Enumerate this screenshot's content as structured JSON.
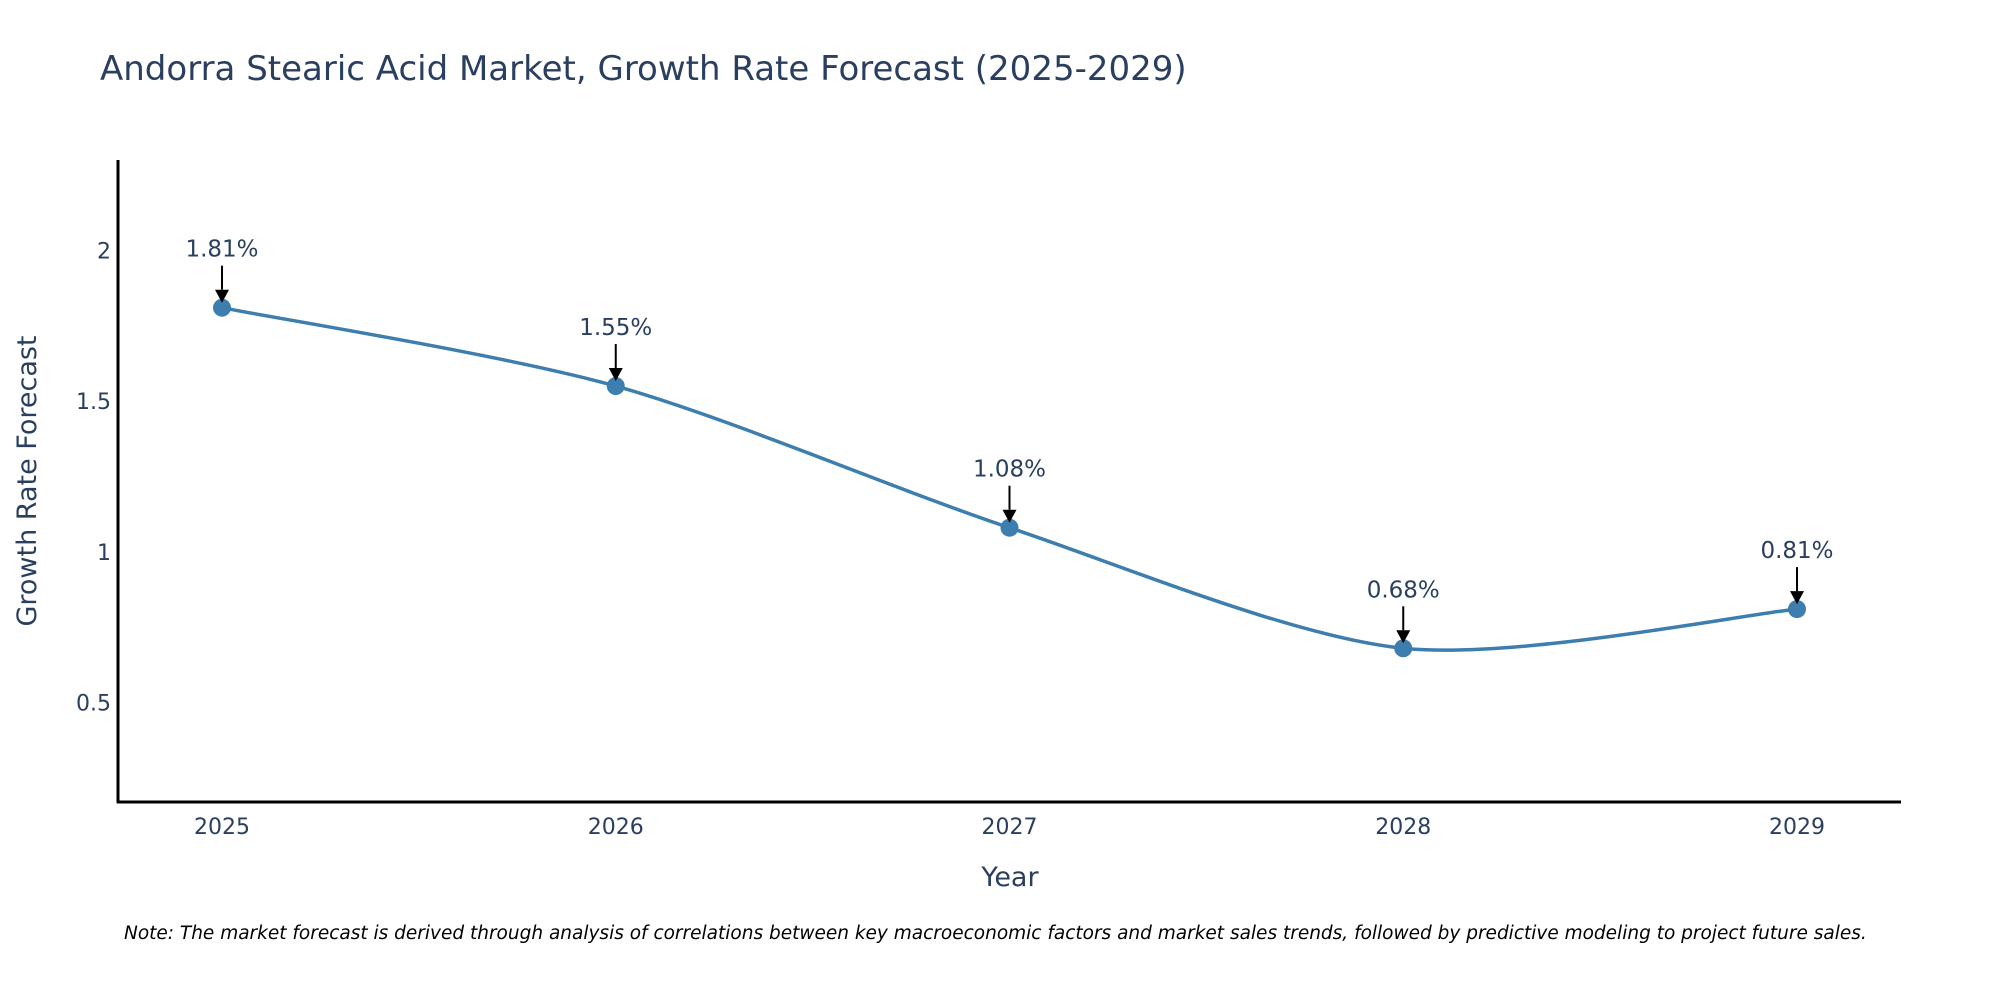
{
  "chart_data": {
    "type": "line",
    "title": "Andorra Stearic Acid Market, Growth Rate Forecast (2025-2029)",
    "xlabel": "Year",
    "ylabel": "Growth Rate Forecast",
    "categories": [
      "2025",
      "2026",
      "2027",
      "2028",
      "2029"
    ],
    "values": [
      1.81,
      1.55,
      1.08,
      0.68,
      0.81
    ],
    "data_labels": [
      "1.81%",
      "1.55%",
      "1.08%",
      "0.68%",
      "0.81%"
    ],
    "y_ticks": [
      0.5,
      1,
      1.5,
      2
    ],
    "y_tick_labels": [
      "0.5",
      "1",
      "1.5",
      "2"
    ],
    "ylim": [
      0.17,
      2.3
    ],
    "grid": false,
    "line_shape": "spline",
    "line_color": "#3d7eae",
    "marker_color": "#3d7eae",
    "arrow_color": "#000000",
    "note": "Note: The market forecast is derived through analysis of correlations between key macroeconomic factors and market sales trends, followed by predictive modeling to project future sales."
  }
}
